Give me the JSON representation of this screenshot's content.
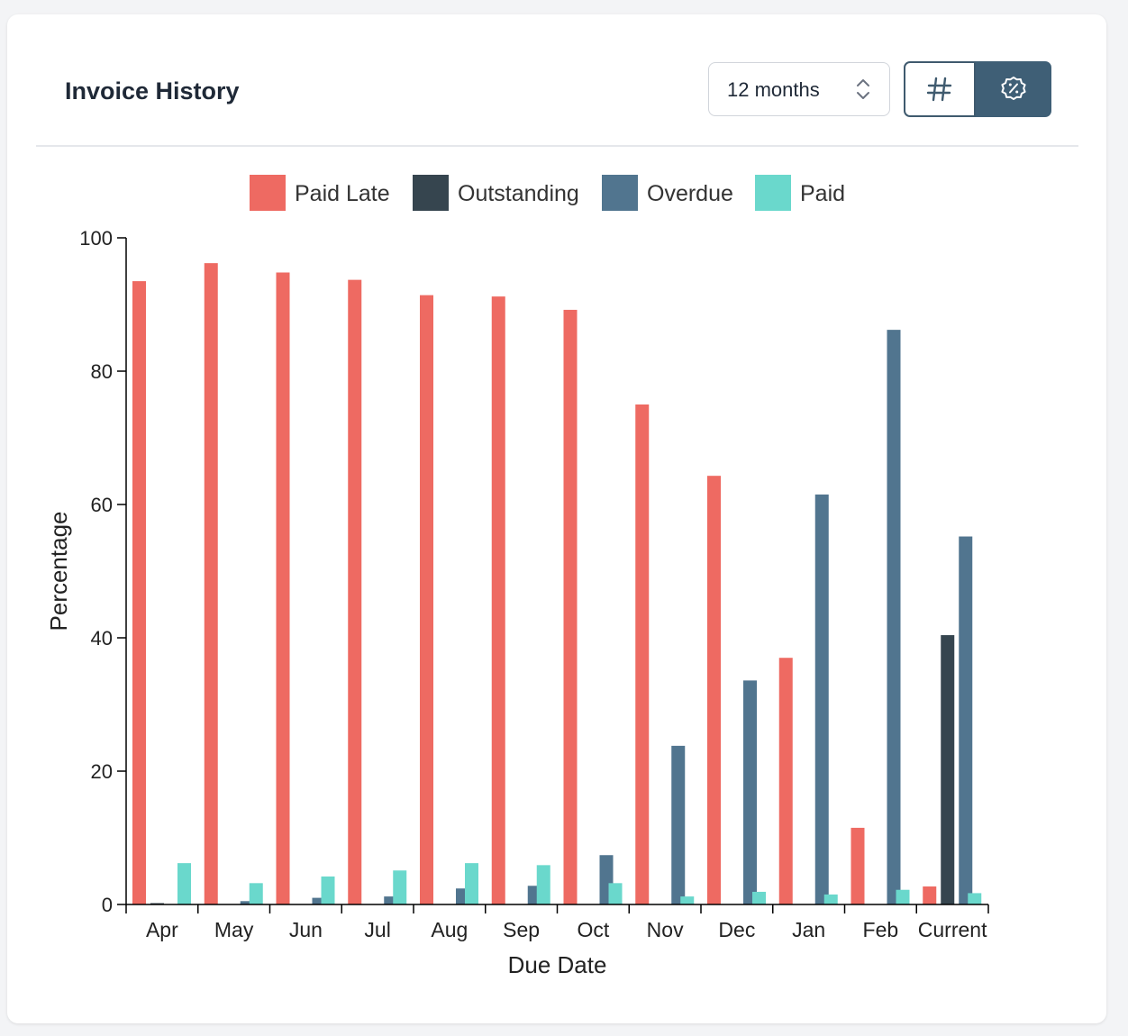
{
  "header": {
    "title": "Invoice History",
    "range": {
      "selected": "12 months"
    },
    "view_toggle": {
      "count_icon": "hash-icon",
      "percent_icon": "percent-badge-icon",
      "active": "percent"
    }
  },
  "colors": {
    "paid_late": "#ee6a62",
    "outstanding": "#36454f",
    "overdue": "#51758f",
    "paid": "#6ad8cc",
    "accent": "#3f5f76"
  },
  "chart_data": {
    "type": "bar",
    "xlabel": "Due Date",
    "ylabel": "Percentage",
    "ylim": [
      0,
      100
    ],
    "yticks": [
      0,
      20,
      40,
      60,
      80,
      100
    ],
    "legend_position": "top-center",
    "categories": [
      "Apr",
      "May",
      "Jun",
      "Jul",
      "Aug",
      "Sep",
      "Oct",
      "Nov",
      "Dec",
      "Jan",
      "Feb",
      "Current"
    ],
    "series": [
      {
        "name": "Paid Late",
        "color": "#ee6a62",
        "values": [
          93.5,
          96.2,
          94.8,
          93.7,
          91.4,
          91.2,
          89.2,
          75.0,
          64.3,
          37.0,
          11.5,
          2.7
        ]
      },
      {
        "name": "Outstanding",
        "color": "#36454f",
        "values": [
          0.2,
          0,
          0,
          0,
          0,
          0,
          0,
          0,
          0,
          0,
          0,
          40.4
        ]
      },
      {
        "name": "Overdue",
        "color": "#51758f",
        "values": [
          0,
          0.5,
          1.0,
          1.2,
          2.4,
          2.8,
          7.4,
          23.8,
          33.6,
          61.5,
          86.2,
          55.2
        ]
      },
      {
        "name": "Paid",
        "color": "#6ad8cc",
        "values": [
          6.2,
          3.2,
          4.2,
          5.1,
          6.2,
          5.9,
          3.2,
          1.2,
          1.9,
          1.5,
          2.2,
          1.7
        ]
      }
    ]
  }
}
